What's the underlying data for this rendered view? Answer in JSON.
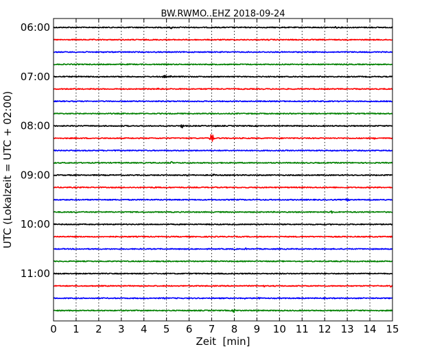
{
  "chart_data": {
    "type": "line",
    "title": "BW.RWMO..EHZ 2018-09-24",
    "xlabel": "Zeit  [min]",
    "ylabel": "UTC (Lokalzeit = UTC + 02:00)",
    "xlim": [
      0,
      15
    ],
    "x_ticks": [
      "0",
      "1",
      "2",
      "3",
      "4",
      "5",
      "6",
      "7",
      "8",
      "9",
      "10",
      "11",
      "12",
      "13",
      "14",
      "15"
    ],
    "hour_labels": [
      "06:00",
      "07:00",
      "08:00",
      "09:00",
      "10:00",
      "11:00"
    ],
    "grid_x": true,
    "traces_per_hour": 4,
    "trace_colors": [
      "#000000",
      "#ff0000",
      "#0000ff",
      "#008000"
    ],
    "series": [
      {
        "start": "06:00",
        "color": "#000000",
        "events": [
          {
            "t": 0.7,
            "a": 0.2
          },
          {
            "t": 5.2,
            "a": 0.35
          },
          {
            "t": 5.6,
            "a": 0.2
          },
          {
            "t": 12.5,
            "a": 0.3
          }
        ]
      },
      {
        "start": "06:15",
        "color": "#ff0000",
        "events": [
          {
            "t": 9.5,
            "a": 0.2
          }
        ]
      },
      {
        "start": "06:30",
        "color": "#0000ff",
        "events": []
      },
      {
        "start": "06:45",
        "color": "#008000",
        "events": []
      },
      {
        "start": "07:00",
        "color": "#000000",
        "events": [
          {
            "t": 1.1,
            "a": 0.25
          },
          {
            "t": 4.9,
            "a": 0.45
          },
          {
            "t": 5.2,
            "a": 0.25
          },
          {
            "t": 10.8,
            "a": 0.25
          }
        ]
      },
      {
        "start": "07:15",
        "color": "#ff0000",
        "events": [
          {
            "t": 4.6,
            "a": 0.35
          }
        ]
      },
      {
        "start": "07:30",
        "color": "#0000ff",
        "events": [
          {
            "t": 8.0,
            "a": 0.15
          }
        ]
      },
      {
        "start": "07:45",
        "color": "#008000",
        "events": [
          {
            "t": 2.5,
            "a": 0.2
          }
        ]
      },
      {
        "start": "08:00",
        "color": "#000000",
        "events": [
          {
            "t": 3.3,
            "a": 0.2
          },
          {
            "t": 5.7,
            "a": 0.55
          },
          {
            "t": 7.2,
            "a": 0.3
          }
        ]
      },
      {
        "start": "08:15",
        "color": "#ff0000",
        "events": [
          {
            "t": 7.0,
            "a": 1.4
          },
          {
            "t": 14.2,
            "a": 0.25
          }
        ]
      },
      {
        "start": "08:30",
        "color": "#0000ff",
        "events": [
          {
            "t": 2.7,
            "a": 0.25
          },
          {
            "t": 11.5,
            "a": 0.2
          }
        ]
      },
      {
        "start": "08:45",
        "color": "#008000",
        "events": [
          {
            "t": 5.2,
            "a": 0.4
          }
        ]
      },
      {
        "start": "09:00",
        "color": "#000000",
        "events": [
          {
            "t": 3.0,
            "a": 0.2
          },
          {
            "t": 5.9,
            "a": 0.35
          },
          {
            "t": 7.1,
            "a": 0.3
          }
        ]
      },
      {
        "start": "09:15",
        "color": "#ff0000",
        "events": [
          {
            "t": 4.5,
            "a": 0.3
          },
          {
            "t": 7.2,
            "a": 0.2
          }
        ]
      },
      {
        "start": "09:30",
        "color": "#0000ff",
        "events": [
          {
            "t": 13.0,
            "a": 0.45
          }
        ]
      },
      {
        "start": "09:45",
        "color": "#008000",
        "events": [
          {
            "t": 12.3,
            "a": 0.35
          }
        ]
      },
      {
        "start": "10:00",
        "color": "#000000",
        "events": []
      },
      {
        "start": "10:15",
        "color": "#ff0000",
        "events": []
      },
      {
        "start": "10:30",
        "color": "#0000ff",
        "events": [
          {
            "t": 8.5,
            "a": 0.3
          }
        ]
      },
      {
        "start": "10:45",
        "color": "#008000",
        "events": [
          {
            "t": 12.4,
            "a": 0.15
          }
        ]
      },
      {
        "start": "11:00",
        "color": "#000000",
        "events": [
          {
            "t": 6.3,
            "a": 0.2
          }
        ]
      },
      {
        "start": "11:15",
        "color": "#ff0000",
        "events": [
          {
            "t": 9.3,
            "a": 0.3
          },
          {
            "t": 14.9,
            "a": 0.3
          }
        ]
      },
      {
        "start": "11:30",
        "color": "#0000ff",
        "events": [
          {
            "t": 4.9,
            "a": 0.25
          },
          {
            "t": 8.4,
            "a": 0.45
          },
          {
            "t": 9.1,
            "a": 0.35
          }
        ]
      },
      {
        "start": "11:45",
        "color": "#008000",
        "events": [
          {
            "t": 8.0,
            "a": 0.55
          },
          {
            "t": 9.0,
            "a": 0.3
          }
        ]
      }
    ]
  }
}
